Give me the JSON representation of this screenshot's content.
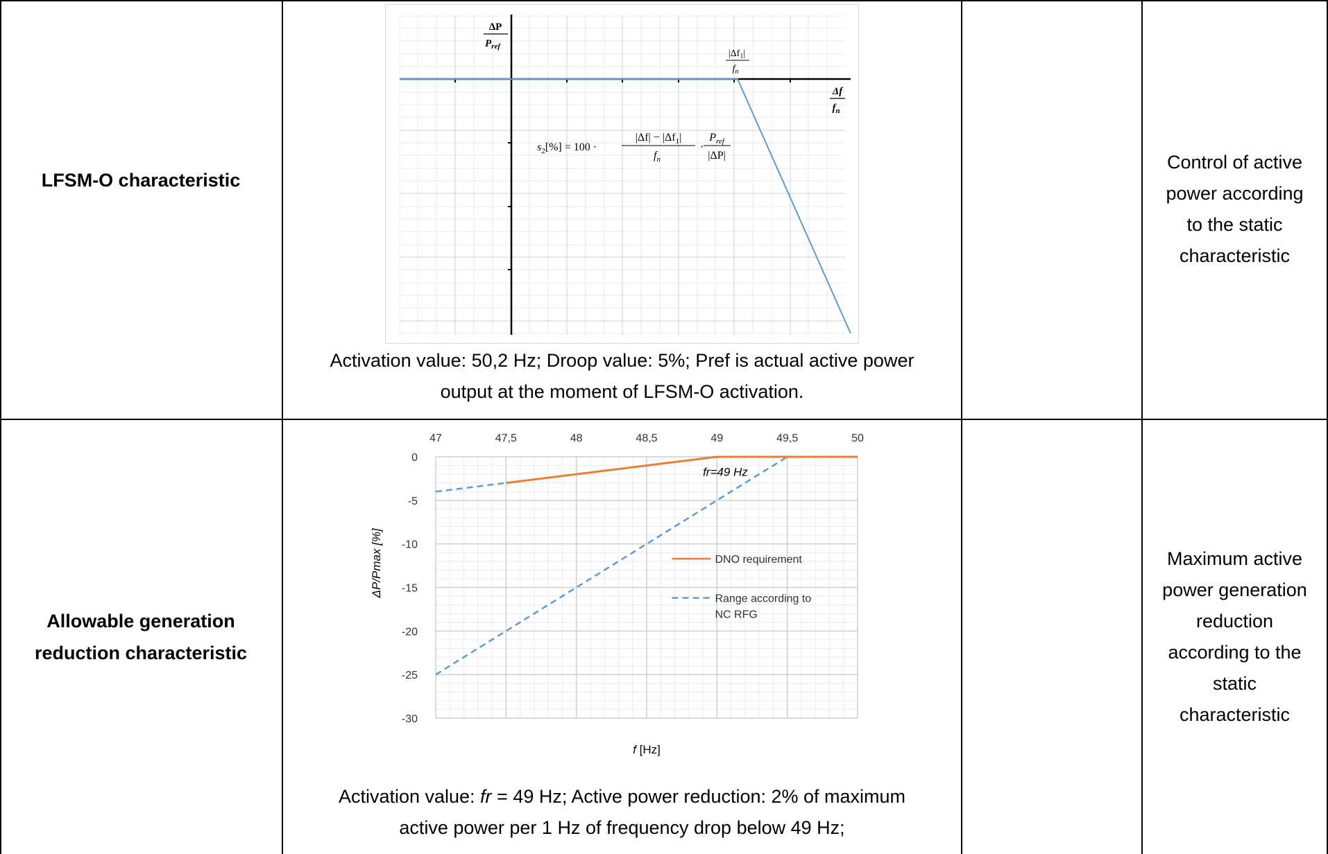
{
  "rows": [
    {
      "label": "LFSM-O characteristic",
      "caption_line1": "Activation value: 50,2 Hz; Droop value: 5%; Pref is actual active power",
      "caption_line2": "output at the moment of LFSM-O activation.",
      "description_lines": [
        "Control of active",
        "power according",
        "to the static",
        "characteristic"
      ]
    },
    {
      "label_lines": [
        "Allowable generation",
        "reduction characteristic"
      ],
      "caption_line1_pre": "Activation value: ",
      "caption_line1_italic": "fr",
      "caption_line1_post": " = 49 Hz; Active power reduction: 2% of maximum",
      "caption_line2": "active power per 1 Hz of frequency drop below 49 Hz;",
      "description_lines": [
        "Maximum active",
        "power generation",
        "reduction",
        "according to the",
        "static",
        "characteristic"
      ]
    }
  ],
  "diagram1": {
    "y_axis_label_num": "ΔP",
    "y_axis_label_den": "P",
    "y_axis_label_den_sub": "ref",
    "x_axis_label_num": "Δf",
    "x_axis_label_den": "f",
    "x_axis_label_den_sub": "n",
    "breakpoint_label_num": "|Δf",
    "breakpoint_label_num_sub": "1",
    "breakpoint_label_num_end": "|",
    "breakpoint_label_den": "f",
    "breakpoint_label_den_sub": "n",
    "formula_lhs": "s",
    "formula_lhs_sub": "2",
    "formula_lhs_end": "[%] = 100 ·",
    "formula_frac1_num": "|Δf| − |Δf",
    "formula_frac1_num_sub": "1",
    "formula_frac1_num_end": "|",
    "formula_frac1_den": "f",
    "formula_frac1_den_sub": "n",
    "formula_dot": "·",
    "formula_frac2_num": "P",
    "formula_frac2_num_sub": "ref",
    "formula_frac2_den": "|ΔP|",
    "line_color": "#5b9bd5"
  },
  "chart_data": {
    "type": "line",
    "title": "",
    "xlabel_italic": "f",
    "xlabel_rest": " [Hz]",
    "ylabel": "ΔP/Pmax [%]",
    "x_tick_labels": [
      "47",
      "47,5",
      "48",
      "48,5",
      "49",
      "49,5",
      "50"
    ],
    "x_ticks": [
      47,
      47.5,
      48,
      48.5,
      49,
      49.5,
      50
    ],
    "y_tick_labels": [
      "0",
      "-5",
      "-10",
      "-15",
      "-20",
      "-25",
      "-30"
    ],
    "y_ticks": [
      0,
      -5,
      -10,
      -15,
      -20,
      -25,
      -30
    ],
    "xlim": [
      47,
      50
    ],
    "ylim": [
      -30,
      0
    ],
    "x_axis_position": "top",
    "grid": true,
    "legend_position": "right",
    "annotation": "fr=49 Hz",
    "series": [
      {
        "name": "DNO requirement",
        "style": "solid",
        "color": "#ed7d31",
        "points": [
          [
            47.5,
            -3
          ],
          [
            49,
            0
          ],
          [
            50,
            0
          ]
        ]
      },
      {
        "name": "Range according to NC RFG",
        "style": "dashed",
        "color": "#5b9bd5",
        "segments": [
          [
            [
              47,
              -4
            ],
            [
              47.5,
              -3
            ],
            [
              49,
              0
            ],
            [
              50,
              0
            ]
          ],
          [
            [
              47,
              -25
            ],
            [
              49.5,
              0
            ]
          ]
        ]
      }
    ]
  }
}
